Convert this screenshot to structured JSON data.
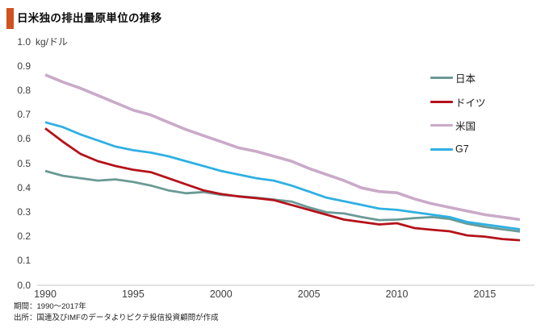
{
  "header": {
    "title": "日米独の排出量原単位の推移"
  },
  "footer": {
    "period": "期間：1990～2017年",
    "source": "出所：国連及びIMFのデータよりピクテ投信投資顧問が作成"
  },
  "colors": {
    "accent_bar": "#d0521f",
    "axis_line": "#c6c6c6",
    "tick_text": "#3d3d3d"
  },
  "chart_data": {
    "type": "line",
    "title": "日米独の排出量原単位の推移",
    "unit": "kg/ドル",
    "ylabel": "kg/ドル",
    "xlabel": "",
    "ylim": [
      0.0,
      1.0
    ],
    "xlim": [
      1990,
      2017
    ],
    "grid": false,
    "legend_position": "upper right",
    "yticks": [
      "0.0",
      "0.1",
      "0.2",
      "0.3",
      "0.4",
      "0.5",
      "0.6",
      "0.7",
      "0.8",
      "0.9",
      "1.0"
    ],
    "xticks": [
      "1990",
      "1995",
      "2000",
      "2005",
      "2010",
      "2015"
    ],
    "x": [
      1990,
      1991,
      1992,
      1993,
      1994,
      1995,
      1996,
      1997,
      1998,
      1999,
      2000,
      2001,
      2002,
      2003,
      2004,
      2005,
      2006,
      2007,
      2008,
      2009,
      2010,
      2011,
      2012,
      2013,
      2014,
      2015,
      2016,
      2017
    ],
    "series": [
      {
        "id": "japan",
        "name": "日本",
        "color": "#6a9a96",
        "width": 2.8,
        "values": [
          0.47,
          0.45,
          0.44,
          0.43,
          0.435,
          0.425,
          0.41,
          0.39,
          0.378,
          0.383,
          0.372,
          0.366,
          0.36,
          0.352,
          0.344,
          0.32,
          0.3,
          0.295,
          0.28,
          0.268,
          0.27,
          0.276,
          0.28,
          0.273,
          0.253,
          0.24,
          0.23,
          0.221
        ]
      },
      {
        "id": "germany",
        "name": "ドイツ",
        "color": "#b5121a",
        "width": 2.8,
        "values": [
          0.645,
          0.59,
          0.54,
          0.51,
          0.49,
          0.475,
          0.465,
          0.44,
          0.415,
          0.39,
          0.375,
          0.365,
          0.358,
          0.35,
          0.33,
          0.31,
          0.29,
          0.27,
          0.26,
          0.25,
          0.255,
          0.235,
          0.228,
          0.222,
          0.205,
          0.2,
          0.19,
          0.185
        ]
      },
      {
        "id": "us",
        "name": "米国",
        "color": "#c9aac8",
        "width": 3.6,
        "values": [
          0.865,
          0.835,
          0.81,
          0.78,
          0.75,
          0.72,
          0.7,
          0.67,
          0.64,
          0.615,
          0.59,
          0.565,
          0.55,
          0.53,
          0.51,
          0.48,
          0.455,
          0.43,
          0.4,
          0.385,
          0.38,
          0.355,
          0.335,
          0.32,
          0.305,
          0.29,
          0.28,
          0.27
        ]
      },
      {
        "id": "g7",
        "name": "G7",
        "color": "#2fb0e3",
        "width": 2.8,
        "values": [
          0.67,
          0.65,
          0.62,
          0.595,
          0.57,
          0.555,
          0.545,
          0.53,
          0.51,
          0.49,
          0.47,
          0.455,
          0.44,
          0.43,
          0.41,
          0.385,
          0.36,
          0.345,
          0.33,
          0.315,
          0.31,
          0.3,
          0.29,
          0.28,
          0.26,
          0.25,
          0.24,
          0.23
        ]
      }
    ]
  }
}
